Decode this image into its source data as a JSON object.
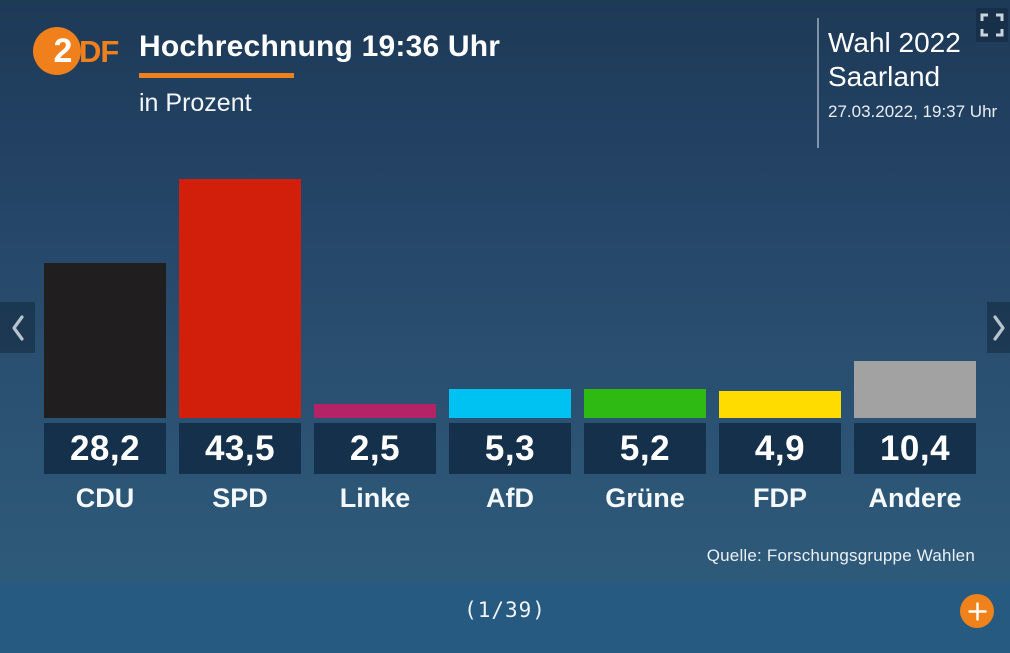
{
  "header": {
    "logo_text_2": "2",
    "logo_text_df": "DF",
    "title": "Hochrechnung 19:36 Uhr",
    "subtitle": "in Prozent",
    "context_title": "Wahl 2022",
    "context_region": "Saarland",
    "context_timestamp": "27.03.2022, 19:37 Uhr"
  },
  "icons": {
    "fullscreen": "corner-brackets-expand",
    "prev": "chevron-left",
    "next": "chevron-right",
    "add": "plus"
  },
  "colors": {
    "accent_orange": "#f0801c",
    "value_box_bg": "#14304b",
    "background_top": "#1d3a57",
    "background_bottom": "#2e5a7a",
    "bottom_bar": "#265a80"
  },
  "chart_data": {
    "type": "bar",
    "title": "Hochrechnung 19:36 Uhr",
    "unit": "in Prozent",
    "categories": [
      "CDU",
      "SPD",
      "Linke",
      "AfD",
      "Grüne",
      "FDP",
      "Andere"
    ],
    "values": [
      28.2,
      43.5,
      2.5,
      5.3,
      5.2,
      4.9,
      10.4
    ],
    "value_labels": [
      "28,2",
      "43,5",
      "2,5",
      "5,3",
      "5,2",
      "4,9",
      "10,4"
    ],
    "bar_colors": [
      "#201e1e",
      "#d21f0b",
      "#b42365",
      "#00c2f2",
      "#2fba13",
      "#ffdc00",
      "#a2a2a2"
    ],
    "ylim": [
      0,
      45.5
    ],
    "grid": false,
    "legend": false,
    "source": "Quelle: Forschungsgruppe Wahlen"
  },
  "footer": {
    "pagination": "(1/39)"
  }
}
